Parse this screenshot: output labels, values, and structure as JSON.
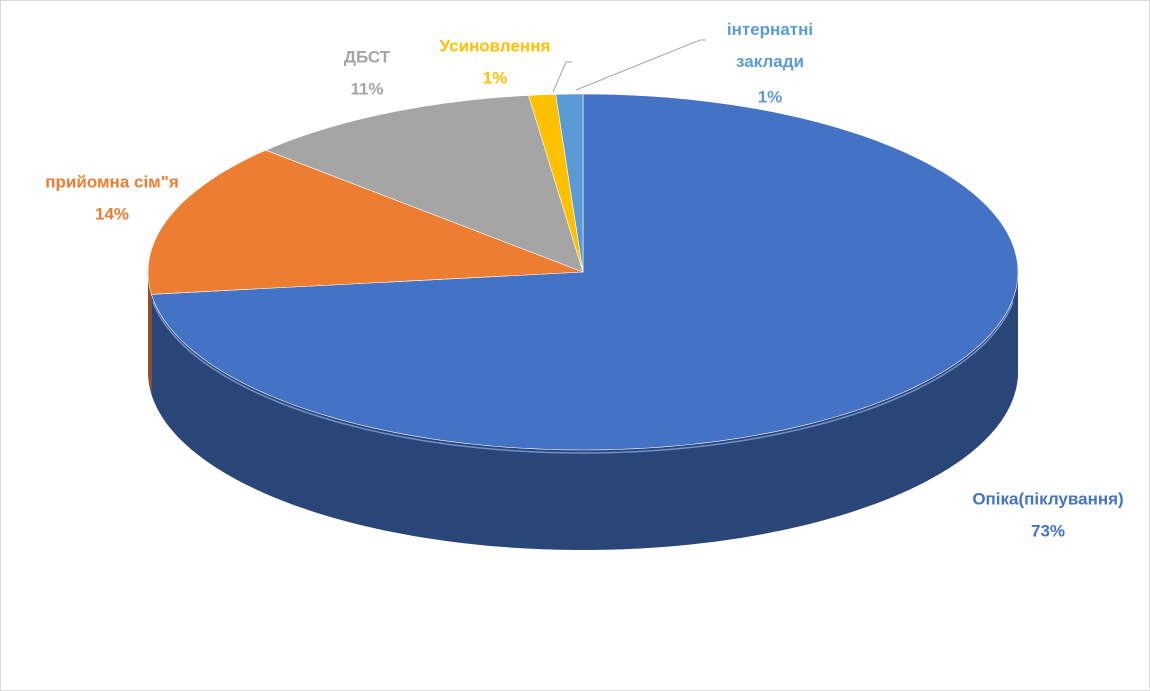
{
  "chart_data": {
    "type": "pie",
    "categories": [
      "Опіка(піклування)",
      "прийомна сім\"я",
      "ДБСТ",
      "Усиновлення",
      "інтернатні заклади"
    ],
    "values": [
      73,
      14,
      11,
      1,
      1
    ],
    "value_labels": [
      "73%",
      "14%",
      "11%",
      "1%",
      "1%"
    ],
    "colors": [
      "#4472c4",
      "#ed7d31",
      "#a5a5a5",
      "#ffc000",
      "#5b9bd5"
    ]
  }
}
